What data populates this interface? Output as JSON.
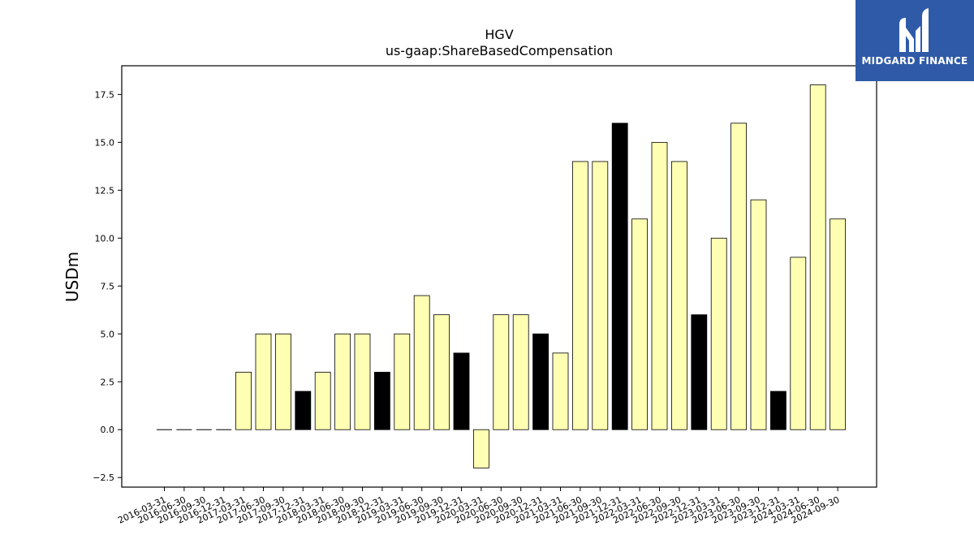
{
  "chart_data": {
    "type": "bar",
    "title": "HGV",
    "subtitle": "us-gaap:ShareBasedCompensation",
    "xlabel": "",
    "ylabel": "USDm",
    "ylim": [
      -3.0,
      19.0
    ],
    "yticks": [
      "−2.5",
      "0.0",
      "2.5",
      "5.0",
      "7.5",
      "10.0",
      "12.5",
      "15.0",
      "17.5"
    ],
    "ytick_values": [
      -2.5,
      0.0,
      2.5,
      5.0,
      7.5,
      10.0,
      12.5,
      15.0,
      17.5
    ],
    "categories": [
      "2016-03-31",
      "2016-06-30",
      "2016-09-30",
      "2016-12-31",
      "2017-03-31",
      "2017-06-30",
      "2017-09-30",
      "2017-12-31",
      "2018-03-31",
      "2018-06-30",
      "2018-09-30",
      "2018-12-31",
      "2019-03-31",
      "2019-06-30",
      "2019-09-30",
      "2019-12-31",
      "2020-03-31",
      "2020-06-30",
      "2020-09-30",
      "2020-12-31",
      "2021-03-31",
      "2021-06-30",
      "2021-09-30",
      "2021-12-31",
      "2022-03-31",
      "2022-06-30",
      "2022-09-30",
      "2022-12-31",
      "2023-03-31",
      "2023-06-30",
      "2023-09-30",
      "2023-12-31",
      "2024-03-31",
      "2024-06-30",
      "2024-09-30"
    ],
    "values": [
      0,
      0,
      0,
      0,
      3,
      5,
      5,
      2,
      3,
      5,
      5,
      3,
      5,
      7,
      6,
      4,
      -2,
      6,
      6,
      5,
      4,
      14,
      14,
      16,
      11,
      15,
      14,
      6,
      10,
      16,
      12,
      2,
      9,
      18,
      11
    ],
    "year_end_highlight": [
      false,
      false,
      false,
      true,
      false,
      false,
      false,
      true,
      false,
      false,
      false,
      true,
      false,
      false,
      false,
      true,
      false,
      false,
      false,
      true,
      false,
      false,
      false,
      true,
      false,
      false,
      false,
      true,
      false,
      false,
      false,
      true,
      false,
      false,
      false
    ],
    "colors": {
      "bar": "#ffffb3",
      "year_end_bar": "#000000",
      "edge": "#000000"
    },
    "grid": false,
    "legend": "none"
  },
  "logo": {
    "text": "MIDGARD FINANCE",
    "bg_color": "#2f5aa8"
  }
}
